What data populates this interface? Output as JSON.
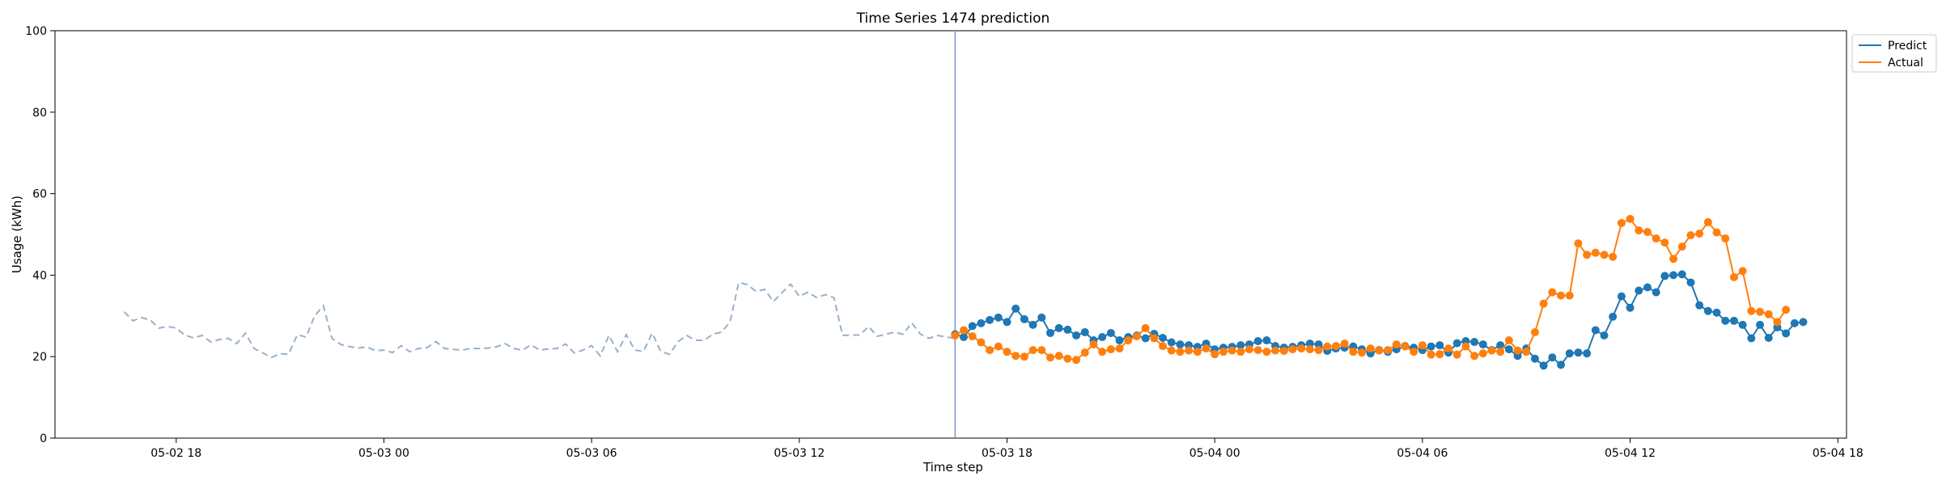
{
  "chart_data": {
    "type": "line",
    "title": "Time Series 1474 prediction",
    "xlabel": "Time step",
    "ylabel": "Usage (kWh)",
    "ylim": [
      0,
      100
    ],
    "yticks": [
      0,
      20,
      40,
      60,
      80,
      100
    ],
    "xlim": [
      "2024-05-02T14:30",
      "2024-05-04T18:15"
    ],
    "xticks": [
      {
        "t": "2024-05-02T18:00",
        "label": "05-02 18"
      },
      {
        "t": "2024-05-03T00:00",
        "label": "05-03 00"
      },
      {
        "t": "2024-05-03T06:00",
        "label": "05-03 06"
      },
      {
        "t": "2024-05-03T12:00",
        "label": "05-03 12"
      },
      {
        "t": "2024-05-03T18:00",
        "label": "05-03 18"
      },
      {
        "t": "2024-05-04T00:00",
        "label": "05-04 00"
      },
      {
        "t": "2024-05-04T06:00",
        "label": "05-04 06"
      },
      {
        "t": "2024-05-04T12:00",
        "label": "05-04 12"
      },
      {
        "t": "2024-05-04T18:00",
        "label": "05-04 18"
      }
    ],
    "forecast_start": "2024-05-03T16:30",
    "history": {
      "start": "2024-05-02T16:30",
      "interval_minutes": 15,
      "color": "#9ab0c8",
      "values": [
        31.0,
        28.8,
        29.6,
        29.0,
        27.0,
        27.4,
        27.0,
        25.3,
        24.6,
        25.2,
        23.6,
        24.2,
        24.5,
        23.2,
        25.8,
        22.0,
        20.9,
        19.8,
        20.7,
        20.6,
        25.4,
        24.8,
        30.0,
        32.5,
        24.5,
        23.0,
        22.5,
        22.1,
        22.4,
        21.5,
        21.6,
        21.0,
        22.7,
        21.2,
        22.0,
        22.2,
        23.7,
        22.0,
        21.8,
        21.6,
        22.0,
        22.0,
        22.1,
        22.4,
        23.2,
        22.0,
        21.6,
        22.9,
        21.6,
        21.9,
        22.0,
        23.1,
        20.9,
        21.6,
        22.7,
        20.2,
        25.2,
        21.2,
        25.4,
        21.6,
        21.3,
        25.8,
        21.2,
        20.6,
        23.7,
        25.2,
        24.0,
        24.0,
        25.5,
        26.0,
        28.5,
        38.2,
        37.7,
        36.0,
        36.5,
        33.5,
        35.7,
        37.8,
        34.8,
        35.8,
        34.5,
        35.2,
        34.5,
        25.2,
        25.3,
        25.3,
        27.4,
        25.0,
        25.5,
        26.0,
        25.5,
        28.3,
        25.5,
        24.5,
        25.2,
        24.8,
        24.5
      ]
    },
    "series": [
      {
        "name": "Predict",
        "color": "#1f77b4",
        "start": "2024-05-03T16:30",
        "interval_minutes": 15,
        "values": [
          25.5,
          24.8,
          27.5,
          28.2,
          29.0,
          29.6,
          28.5,
          31.8,
          29.2,
          27.8,
          29.6,
          25.8,
          27.0,
          26.6,
          25.2,
          26.0,
          24.0,
          24.8,
          25.8,
          24.0,
          24.8,
          25.2,
          24.5,
          25.6,
          24.6,
          23.5,
          23.0,
          22.8,
          22.4,
          23.2,
          21.8,
          22.2,
          22.4,
          22.8,
          23.0,
          23.8,
          24.0,
          22.6,
          22.2,
          22.4,
          22.8,
          23.2,
          23.0,
          21.4,
          22.0,
          22.2,
          22.5,
          21.8,
          20.8,
          21.6,
          21.2,
          21.8,
          22.6,
          22.2,
          21.6,
          22.5,
          22.8,
          21.0,
          23.3,
          23.8,
          23.6,
          23.0,
          21.6,
          22.8,
          21.8,
          20.2,
          22.0,
          19.5,
          17.8,
          19.8,
          18.0,
          20.8,
          21.0,
          20.8,
          26.5,
          25.2,
          29.8,
          34.8,
          32.0,
          36.2,
          37.0,
          35.8,
          39.8,
          40.0,
          40.2,
          38.2,
          32.6,
          31.2,
          30.8,
          28.8,
          28.8,
          27.8,
          24.5,
          27.8,
          24.6,
          27.2,
          25.7,
          28.2,
          28.5
        ]
      },
      {
        "name": "Actual",
        "color": "#ff7f0e",
        "start": "2024-05-03T16:30",
        "interval_minutes": 15,
        "values": [
          25.2,
          26.5,
          25.0,
          23.5,
          21.6,
          22.5,
          21.2,
          20.2,
          20.0,
          21.6,
          21.6,
          19.8,
          20.2,
          19.5,
          19.2,
          21.0,
          23.0,
          21.2,
          21.8,
          22.0,
          24.0,
          25.0,
          27.0,
          24.5,
          22.6,
          21.5,
          21.2,
          21.5,
          21.2,
          22.0,
          20.6,
          21.2,
          21.5,
          21.2,
          21.8,
          21.6,
          21.2,
          21.5,
          21.4,
          21.8,
          22.0,
          21.8,
          21.6,
          22.5,
          22.6,
          23.2,
          21.2,
          21.0,
          22.0,
          21.5,
          21.6,
          23.0,
          22.5,
          21.2,
          22.8,
          20.5,
          20.6,
          22.0,
          20.5,
          22.5,
          20.2,
          20.8,
          21.5,
          21.2,
          24.0,
          21.5,
          21.2,
          26.0,
          33.0,
          35.8,
          35.0,
          35.0,
          47.8,
          45.0,
          45.5,
          45.0,
          44.5,
          52.8,
          53.8,
          51.0,
          50.6,
          49.0,
          48.0,
          44.0,
          47.0,
          49.8,
          50.2,
          53.0,
          50.5,
          49.0,
          39.5,
          41.0,
          31.2,
          31.0,
          30.4,
          28.5,
          31.5
        ]
      }
    ],
    "legend": {
      "position": "top-right",
      "entries": [
        "Predict",
        "Actual"
      ]
    },
    "grid": false
  }
}
